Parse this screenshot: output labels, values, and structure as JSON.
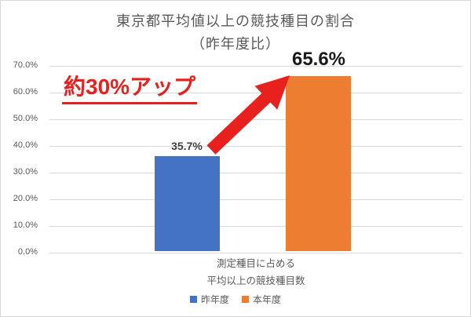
{
  "chart_data": {
    "type": "bar",
    "title": "東京都平均値以上の競技種目の割合",
    "subtitle": "（昨年度比）",
    "categories": [
      "測定種目に占める平均以上の競技種目数"
    ],
    "category_label_lines": [
      "測定種目に占める",
      "平均以上の競技種目数"
    ],
    "series": [
      {
        "name": "昨年度",
        "value": 35.7,
        "label": "35.7%",
        "color": "#4472C4"
      },
      {
        "name": "本年度",
        "value": 65.6,
        "label": "65.6%",
        "color": "#ED7D31"
      }
    ],
    "ylabel": "",
    "xlabel": "",
    "ylim": [
      0,
      70
    ],
    "ytick_step": 10,
    "yticks": [
      "0.0%",
      "10.0%",
      "20.0%",
      "30.0%",
      "40.0%",
      "50.0%",
      "60.0%",
      "70.0%"
    ],
    "grid": true,
    "gridline_color": "#d9d9d9",
    "legend_position": "bottom"
  },
  "annotation": {
    "text": "約30%アップ",
    "color": "#e8201e",
    "underline": true,
    "arrow": true
  }
}
